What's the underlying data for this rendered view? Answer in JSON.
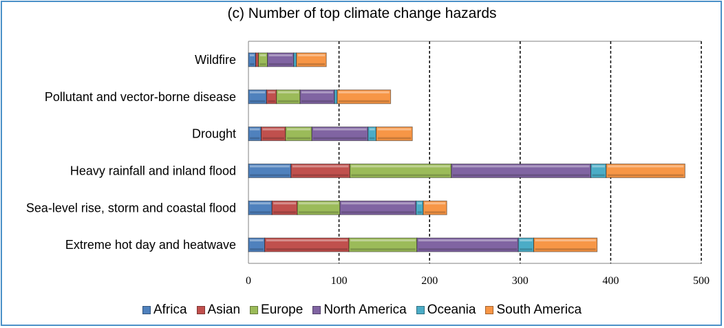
{
  "chart_data": {
    "type": "bar",
    "orientation": "horizontal",
    "stacked": true,
    "title": "(c) Number of top climate change hazards",
    "categories": [
      "Wildfire",
      "Pollutant and vector-borne disease",
      "Drought",
      "Heavy rainfall and inland flood",
      "Sea-level rise, storm and coastal flood",
      "Extreme hot day and heatwave"
    ],
    "series": [
      {
        "name": "Africa",
        "color": "#4f81bd",
        "values": [
          8,
          20,
          14,
          47,
          26,
          18
        ]
      },
      {
        "name": "Asian",
        "color": "#c0504d",
        "values": [
          3,
          11,
          27,
          65,
          28,
          93
        ]
      },
      {
        "name": "Europe",
        "color": "#9bbb59",
        "values": [
          10,
          26,
          29,
          112,
          47,
          75
        ]
      },
      {
        "name": "North America",
        "color": "#8064a2",
        "values": [
          29,
          38,
          62,
          154,
          84,
          112
        ]
      },
      {
        "name": "Oceania",
        "color": "#4bacc6",
        "values": [
          3,
          3,
          9,
          17,
          8,
          17
        ]
      },
      {
        "name": "South America",
        "color": "#f79646",
        "values": [
          33,
          59,
          40,
          87,
          26,
          70
        ]
      }
    ],
    "xlim": [
      0,
      500
    ],
    "xticks": [
      0,
      100,
      200,
      300,
      400,
      500
    ],
    "grid": "vertical dashed",
    "legend_position": "bottom"
  }
}
